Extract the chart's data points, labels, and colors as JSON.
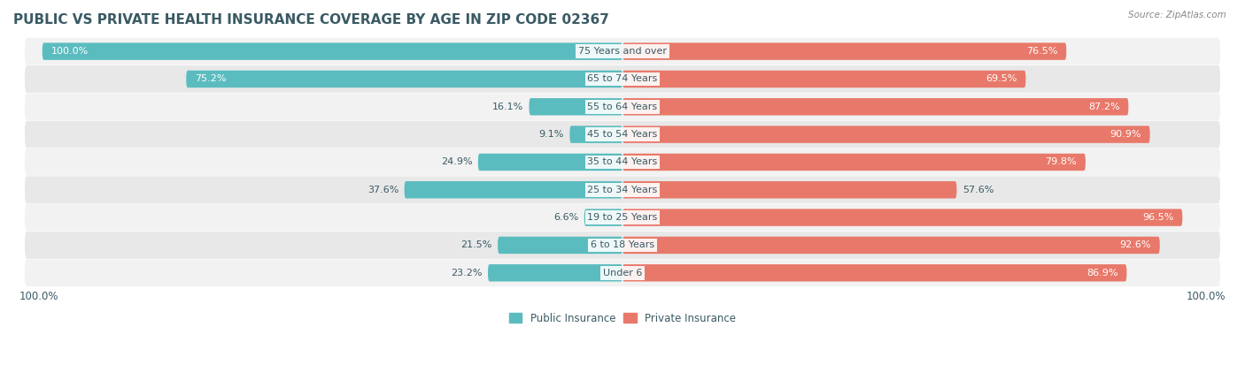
{
  "title": "PUBLIC VS PRIVATE HEALTH INSURANCE COVERAGE BY AGE IN ZIP CODE 02367",
  "source": "Source: ZipAtlas.com",
  "categories": [
    "Under 6",
    "6 to 18 Years",
    "19 to 25 Years",
    "25 to 34 Years",
    "35 to 44 Years",
    "45 to 54 Years",
    "55 to 64 Years",
    "65 to 74 Years",
    "75 Years and over"
  ],
  "public_values": [
    23.2,
    21.5,
    6.6,
    37.6,
    24.9,
    9.1,
    16.1,
    75.2,
    100.0
  ],
  "private_values": [
    86.9,
    92.6,
    96.5,
    57.6,
    79.8,
    90.9,
    87.2,
    69.5,
    76.5
  ],
  "public_color": "#5bbcbf",
  "private_color": "#e8796a",
  "public_label": "Public Insurance",
  "private_label": "Private Insurance",
  "row_bg_color_odd": "#f2f2f2",
  "row_bg_color_even": "#e8e8e8",
  "title_color": "#3a5a64",
  "text_color": "#3a5a64",
  "axis_label_left": "100.0%",
  "axis_label_right": "100.0%",
  "xlabel_fontsize": 8.5,
  "title_fontsize": 11,
  "label_fontsize": 8,
  "value_fontsize": 8
}
